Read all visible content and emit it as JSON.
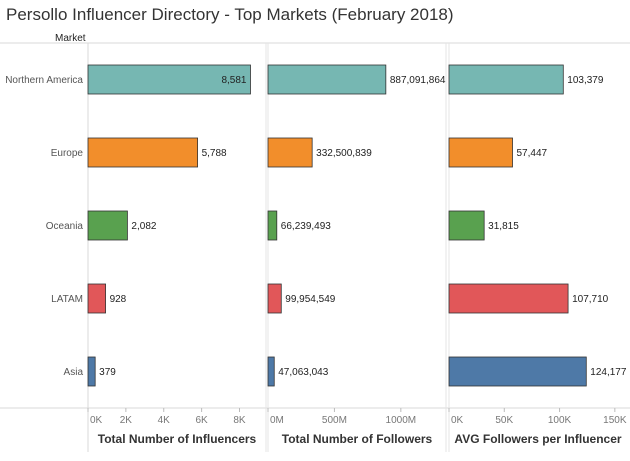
{
  "title": "Persollo Influencer Directory - Top Markets (February 2018)",
  "row_header": "Market",
  "colors": {
    "Northern America": "#76b7b2",
    "Europe": "#f28e2b",
    "Oceania": "#59a14f",
    "LATAM": "#e15759",
    "Asia": "#4e79a7"
  },
  "chart_data": [
    {
      "type": "bar",
      "orientation": "horizontal",
      "categories": [
        "Northern America",
        "Europe",
        "Oceania",
        "LATAM",
        "Asia"
      ],
      "values": [
        8581,
        5788,
        2082,
        928,
        379
      ],
      "value_labels": [
        "8,581",
        "5,788",
        "2,082",
        "928",
        "379"
      ],
      "xlabel": "Total Number of Influencers",
      "xlim": [
        0,
        9400
      ],
      "ticks": [
        0,
        2000,
        4000,
        6000,
        8000
      ],
      "tick_labels": [
        "0K",
        "2K",
        "4K",
        "6K",
        "8K"
      ],
      "grid": false
    },
    {
      "type": "bar",
      "orientation": "horizontal",
      "categories": [
        "Northern America",
        "Europe",
        "Oceania",
        "LATAM",
        "Asia"
      ],
      "values": [
        887091864,
        332500839,
        66239493,
        99954549,
        47063043
      ],
      "value_labels": [
        "887,091,864",
        "332,500,839",
        "66,239,493",
        "99,954,549",
        "47,063,043"
      ],
      "xlabel": "Total Number of Followers",
      "xlim": [
        0,
        1340000000
      ],
      "ticks": [
        0,
        500000000,
        1000000000
      ],
      "tick_labels": [
        "0M",
        "500M",
        "1000M"
      ],
      "grid": false
    },
    {
      "type": "bar",
      "orientation": "horizontal",
      "categories": [
        "Northern America",
        "Europe",
        "Oceania",
        "LATAM",
        "Asia"
      ],
      "values": [
        103379,
        57447,
        31815,
        107710,
        124177
      ],
      "value_labels": [
        "103,379",
        "57,447",
        "31,815",
        "107,710",
        "124,177"
      ],
      "xlabel": "AVG Followers per Influencer",
      "xlim": [
        0,
        161000
      ],
      "ticks": [
        0,
        50000,
        100000,
        150000
      ],
      "tick_labels": [
        "0K",
        "50K",
        "100K",
        "150K"
      ],
      "grid": false
    }
  ]
}
